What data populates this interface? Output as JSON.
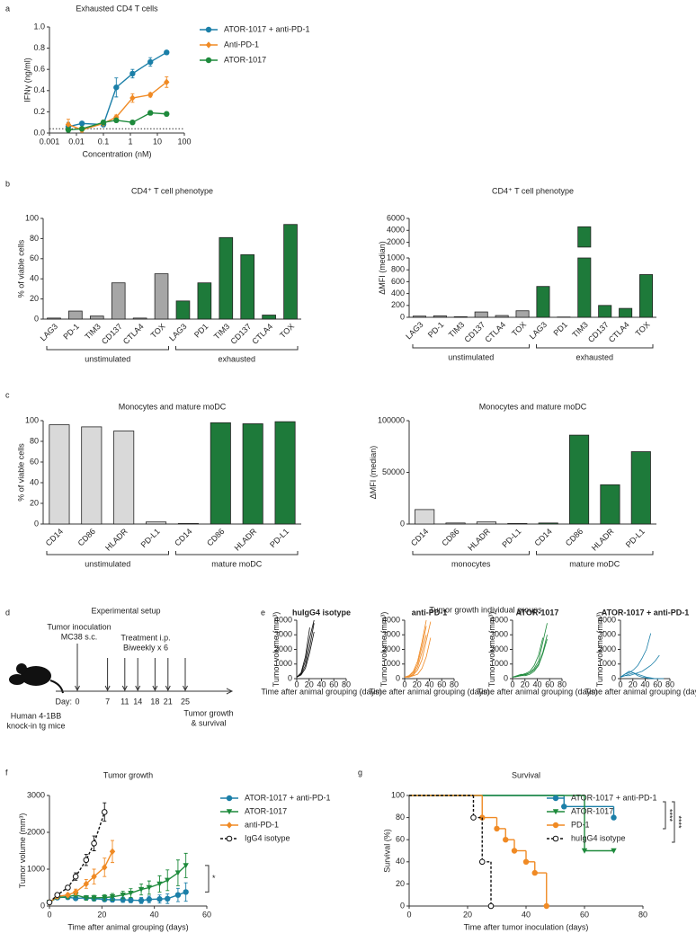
{
  "panels": [
    "a",
    "b",
    "c",
    "d",
    "e",
    "f",
    "g"
  ],
  "setup": {
    "title": "Experimental setup",
    "inoculation": [
      "Tumor inoculation",
      "MC38 s.c."
    ],
    "treatment": [
      "Treatment i.p.",
      "Biweekly x 6"
    ],
    "day_label": "Day:",
    "days": [
      0,
      7,
      11,
      14,
      18,
      21,
      25
    ],
    "mice": [
      "Human 4-1BB",
      "knock-in tg mice"
    ],
    "endpoint": [
      "Tumor growth",
      "& survival"
    ]
  },
  "growth_title": "Tumor growth individual groups",
  "chart_data": [
    {
      "type": "line",
      "title": "Exhausted  CD4 T cells",
      "xlabel": "Concentration (nM)",
      "ylabel": "IFNγ (ng/ml)",
      "xscale": "log",
      "xlim": [
        0.001,
        100
      ],
      "xticks": [
        0.001,
        0.01,
        0.1,
        1,
        10,
        100
      ],
      "ylim": [
        0,
        1
      ],
      "yticks": [
        {
          "value": 0,
          "label": "0.0"
        },
        0.2,
        0.4,
        0.6,
        0.8,
        {
          "value": 1,
          "label": "1.0"
        }
      ],
      "reference_line": 0.04,
      "legend": "right",
      "markers": true,
      "x": [
        0.005,
        0.016,
        0.1,
        0.3,
        1.2,
        5.5,
        22
      ],
      "series": [
        {
          "name": "ATOR-1017 + anti-PD-1",
          "color": "#1b7fa8",
          "marker": "circle",
          "values": [
            0.06,
            0.09,
            0.08,
            0.43,
            0.56,
            0.67,
            0.76
          ],
          "errors": [
            0.04,
            0.01,
            0.02,
            0.09,
            0.04,
            0.04,
            0.01
          ]
        },
        {
          "name": "Anti-PD-1",
          "color": "#f08a24",
          "marker": "diamond",
          "values": [
            0.08,
            0.03,
            0.09,
            0.15,
            0.33,
            0.36,
            0.48
          ],
          "errors": [
            0.05,
            0.02,
            0.01,
            0.02,
            0.04,
            0.02,
            0.05
          ]
        },
        {
          "name": "ATOR-1017",
          "color": "#1e8a3c",
          "marker": "circle",
          "values": [
            0.03,
            0.04,
            0.1,
            0.12,
            0.1,
            0.19,
            0.18
          ],
          "errors": [
            0.02,
            0.01,
            0.02,
            0.01,
            0.01,
            0.02,
            0.02
          ]
        }
      ]
    },
    {
      "type": "bar",
      "title": "CD4⁺ T cell phenotype",
      "ylabel": "% of viable cells",
      "ylim": [
        0,
        100
      ],
      "yticks": [
        0,
        20,
        40,
        60,
        80,
        100
      ],
      "categories": [
        "LAG3",
        "PD-1",
        "TIM3",
        "CD137",
        "CTLA4",
        "TOX",
        "LAG3",
        "PD1",
        "TIM3",
        "CD137",
        "CTLA4",
        "TOX"
      ],
      "values": [
        1,
        8,
        3,
        36,
        1,
        45,
        18,
        36,
        81,
        64,
        4,
        94
      ],
      "colors": [
        "#a6a6a6",
        "#a6a6a6",
        "#a6a6a6",
        "#a6a6a6",
        "#a6a6a6",
        "#a6a6a6",
        "#1e7a3a",
        "#1e7a3a",
        "#1e7a3a",
        "#1e7a3a",
        "#1e7a3a",
        "#1e7a3a"
      ],
      "groups": [
        "unstimulated",
        "exhausted"
      ]
    },
    {
      "type": "bar",
      "title": "CD4⁺ T cell phenotype",
      "ylabel": "ΔMFI (median)",
      "ylim": [
        0,
        6000
      ],
      "ybreak": [
        1000,
        1200
      ],
      "yticks": [
        0,
        200,
        400,
        600,
        800,
        1000,
        2000,
        4000,
        6000
      ],
      "categories": [
        "LAG3",
        "PD-1",
        "TIM3",
        "CD137",
        "CTLA4",
        "TOX",
        "LAG3",
        "PD1",
        "TIM3",
        "CD137",
        "CTLA4",
        "TOX"
      ],
      "values": [
        20,
        25,
        10,
        90,
        30,
        110,
        520,
        5,
        4600,
        200,
        150,
        720
      ],
      "colors": [
        "#a6a6a6",
        "#a6a6a6",
        "#a6a6a6",
        "#a6a6a6",
        "#a6a6a6",
        "#a6a6a6",
        "#1e7a3a",
        "#1e7a3a",
        "#1e7a3a",
        "#1e7a3a",
        "#1e7a3a",
        "#1e7a3a"
      ],
      "groups": [
        "unstimulated",
        "exhausted"
      ]
    },
    {
      "type": "bar",
      "title": "Monocytes and mature moDC",
      "ylabel": "% of viable cells",
      "ylim": [
        0,
        100
      ],
      "yticks": [
        0,
        20,
        40,
        60,
        80,
        100
      ],
      "categories": [
        "CD14",
        "CD86",
        "HLADR",
        "PD-L1",
        "CD14",
        "CD86",
        "HLADR",
        "PD-L1"
      ],
      "values": [
        96,
        94,
        90,
        2,
        0.5,
        98,
        97,
        99
      ],
      "colors": [
        "#d9d9d9",
        "#d9d9d9",
        "#d9d9d9",
        "#d9d9d9",
        "#1e7a3a",
        "#1e7a3a",
        "#1e7a3a",
        "#1e7a3a"
      ],
      "groups": [
        "unstimulated",
        "mature moDC"
      ]
    },
    {
      "type": "bar",
      "title": "Monocytes and mature moDC",
      "ylabel": "ΔMFI (median)",
      "ylim": [
        0,
        100000
      ],
      "yticks": [
        0,
        50000,
        100000
      ],
      "categories": [
        "CD14",
        "CD86",
        "HLADR",
        "PD-L1",
        "CD14",
        "CD86",
        "HLADR",
        "PD-L1"
      ],
      "values": [
        14000,
        1000,
        2000,
        500,
        1000,
        86000,
        38000,
        70000
      ],
      "colors": [
        "#d9d9d9",
        "#d9d9d9",
        "#d9d9d9",
        "#d9d9d9",
        "#1e7a3a",
        "#1e7a3a",
        "#1e7a3a",
        "#1e7a3a"
      ],
      "groups": [
        "monocytes",
        "mature moDC"
      ]
    },
    {
      "type": "line",
      "title": "huIgG4 isotype",
      "xlabel": "Time after animal grouping (days)",
      "ylabel": "Tumor volume (mm³)",
      "markers": false,
      "xlim": [
        0,
        80
      ],
      "xticks": [
        0,
        20,
        40,
        60,
        80
      ],
      "ylim": [
        0,
        4000
      ],
      "yticks": [
        0,
        1000,
        2000,
        3000,
        4000
      ],
      "x": [
        0,
        7,
        14,
        21,
        28,
        35,
        42,
        49,
        56,
        63,
        70
      ],
      "series": [
        {
          "color": "#111111",
          "values": [
            100,
            300,
            900,
            2200,
            3800,
            null,
            null,
            null,
            null,
            null,
            null
          ]
        },
        {
          "color": "#111111",
          "values": [
            100,
            400,
            1500,
            3500,
            null,
            null,
            null,
            null,
            null,
            null,
            null
          ]
        },
        {
          "color": "#111111",
          "values": [
            100,
            250,
            700,
            1800,
            3200,
            null,
            null,
            null,
            null,
            null,
            null
          ]
        },
        {
          "color": "#111111",
          "values": [
            100,
            350,
            1200,
            2800,
            4000,
            null,
            null,
            null,
            null,
            null,
            null
          ]
        }
      ]
    },
    {
      "type": "line",
      "title": "anti-PD-1",
      "xlabel": "Time after animal grouping (days)",
      "ylabel": "Tumor volume (mm³)",
      "markers": false,
      "xlim": [
        0,
        80
      ],
      "xticks": [
        0,
        20,
        40,
        60,
        80
      ],
      "ylim": [
        0,
        4000
      ],
      "yticks": [
        0,
        1000,
        2000,
        3000,
        4000
      ],
      "x": [
        0,
        7,
        14,
        21,
        28,
        35,
        42,
        49,
        56,
        63,
        70
      ],
      "series": [
        {
          "color": "#f08a24",
          "values": [
            100,
            200,
            500,
            1200,
            2500,
            4000,
            null,
            null,
            null,
            null,
            null
          ]
        },
        {
          "color": "#f08a24",
          "values": [
            100,
            150,
            300,
            800,
            1800,
            3000,
            null,
            null,
            null,
            null,
            null
          ]
        },
        {
          "color": "#f08a24",
          "values": [
            100,
            200,
            400,
            1000,
            2200,
            3600,
            null,
            null,
            null,
            null,
            null
          ]
        },
        {
          "color": "#f08a24",
          "values": [
            100,
            150,
            250,
            600,
            1300,
            2600,
            3900,
            null,
            null,
            null,
            null
          ]
        },
        {
          "color": "#f08a24",
          "values": [
            100,
            100,
            200,
            300,
            700,
            1500,
            2800,
            null,
            null,
            null,
            null
          ]
        }
      ]
    },
    {
      "type": "line",
      "title": "ATOR-1017",
      "xlabel": "Time after animal grouping (days)",
      "ylabel": "Tumor volume (mm³)",
      "markers": false,
      "xlim": [
        0,
        80
      ],
      "xticks": [
        0,
        20,
        40,
        60,
        80
      ],
      "ylim": [
        0,
        4000
      ],
      "yticks": [
        0,
        1000,
        2000,
        3000,
        4000
      ],
      "x": [
        0,
        7,
        14,
        21,
        28,
        35,
        42,
        49,
        56,
        63,
        70
      ],
      "series": [
        {
          "color": "#1e8a3c",
          "values": [
            100,
            150,
            200,
            300,
            400,
            700,
            1200,
            2500,
            3800,
            null,
            null
          ]
        },
        {
          "color": "#1e8a3c",
          "values": [
            100,
            200,
            300,
            250,
            400,
            600,
            1000,
            1800,
            3000,
            null,
            null
          ]
        },
        {
          "color": "#1e8a3c",
          "values": [
            100,
            150,
            250,
            350,
            500,
            900,
            1600,
            2800,
            null,
            null,
            null
          ]
        },
        {
          "color": "#1e8a3c",
          "values": [
            100,
            150,
            200,
            200,
            300,
            500,
            900,
            1700,
            2700,
            null,
            null
          ]
        }
      ]
    },
    {
      "type": "line",
      "title": "ATOR-1017 + anti-PD-1",
      "xlabel": "Time after animal grouping (days)",
      "ylabel": "Tumor volume (mm³)",
      "markers": false,
      "xlim": [
        0,
        80
      ],
      "xticks": [
        0,
        20,
        40,
        60,
        80
      ],
      "ylim": [
        0,
        4000
      ],
      "yticks": [
        0,
        1000,
        2000,
        3000,
        4000
      ],
      "x": [
        0,
        7,
        14,
        21,
        28,
        35,
        42,
        49,
        56,
        63,
        70
      ],
      "series": [
        {
          "color": "#1b7fa8",
          "values": [
            100,
            200,
            300,
            400,
            300,
            200,
            100,
            50,
            0,
            0,
            0
          ]
        },
        {
          "color": "#1b7fa8",
          "values": [
            100,
            300,
            400,
            600,
            900,
            1400,
            2000,
            3100,
            null,
            null,
            null
          ]
        },
        {
          "color": "#1b7fa8",
          "values": [
            100,
            200,
            200,
            300,
            400,
            500,
            700,
            900,
            1200,
            1600,
            null
          ]
        },
        {
          "color": "#1b7fa8",
          "values": [
            100,
            300,
            500,
            400,
            200,
            100,
            50,
            0,
            0,
            0,
            0
          ]
        }
      ]
    },
    {
      "type": "line",
      "title": "Tumor growth",
      "xlabel": "Time after animal grouping (days)",
      "ylabel": "Tumor volume (mm³)",
      "markers": true,
      "legend": "right",
      "xlim": [
        0,
        60
      ],
      "xticks": [
        0,
        20,
        40,
        60
      ],
      "ylim": [
        0,
        3000
      ],
      "yticks": [
        0,
        1000,
        2000,
        3000
      ],
      "annotations": [
        "*"
      ],
      "series": [
        {
          "name": "ATOR-1017 + anti-PD-1",
          "color": "#1b7fa8",
          "marker": "circle",
          "x": [
            0,
            3,
            7,
            10,
            14,
            17,
            21,
            24,
            28,
            31,
            35,
            38,
            42,
            45,
            49,
            52
          ],
          "values": [
            100,
            230,
            240,
            210,
            220,
            200,
            180,
            170,
            170,
            160,
            150,
            180,
            190,
            200,
            300,
            380
          ],
          "errors": [
            20,
            40,
            60,
            50,
            60,
            60,
            60,
            60,
            70,
            70,
            80,
            90,
            110,
            130,
            180,
            250
          ]
        },
        {
          "name": "ATOR-1017",
          "color": "#1e8a3c",
          "marker": "triangle",
          "x": [
            0,
            3,
            7,
            10,
            14,
            17,
            21,
            24,
            28,
            31,
            35,
            38,
            42,
            45,
            49,
            52
          ],
          "values": [
            100,
            240,
            250,
            300,
            220,
            220,
            230,
            250,
            300,
            350,
            450,
            500,
            600,
            700,
            900,
            1100
          ],
          "errors": [
            20,
            40,
            50,
            60,
            60,
            70,
            80,
            90,
            100,
            120,
            150,
            180,
            220,
            280,
            350,
            330
          ]
        },
        {
          "name": "anti-PD-1",
          "color": "#f08a24",
          "marker": "diamond",
          "x": [
            0,
            3,
            7,
            10,
            14,
            17,
            21,
            24
          ],
          "values": [
            100,
            260,
            300,
            380,
            600,
            800,
            1050,
            1480
          ],
          "errors": [
            20,
            40,
            50,
            80,
            120,
            200,
            250,
            300
          ]
        },
        {
          "name": "IgG4 isotype",
          "color": "#111111",
          "marker": "open-circle",
          "dash": true,
          "x": [
            0,
            3,
            7,
            10,
            14,
            17,
            21
          ],
          "values": [
            100,
            300,
            500,
            800,
            1250,
            1700,
            2550
          ],
          "errors": [
            20,
            40,
            60,
            100,
            150,
            200,
            250
          ]
        }
      ]
    },
    {
      "type": "step",
      "title": "Survival",
      "xlabel": "Time after tumor inoculation (days)",
      "ylabel": "Survival (%)",
      "markers": true,
      "legend": "right",
      "xlim": [
        0,
        80
      ],
      "xticks": [
        0,
        20,
        40,
        60,
        80
      ],
      "ylim": [
        0,
        100
      ],
      "yticks": [
        0,
        20,
        40,
        60,
        80,
        100
      ],
      "annotations": [
        "****",
        "****"
      ],
      "series": [
        {
          "name": "ATOR-1017 + anti-PD-1",
          "color": "#1b7fa8",
          "marker": "circle",
          "x": [
            0,
            53,
            70
          ],
          "values": [
            100,
            90,
            80
          ]
        },
        {
          "name": "ATOR-1017",
          "color": "#1e8a3c",
          "marker": "triangle",
          "x": [
            0,
            60,
            70
          ],
          "values": [
            100,
            50,
            50
          ]
        },
        {
          "name": "PD-1",
          "color": "#f08a24",
          "marker": "circle",
          "x": [
            0,
            25,
            30,
            33,
            36,
            40,
            43,
            47
          ],
          "values": [
            100,
            80,
            70,
            60,
            50,
            40,
            30,
            0
          ]
        },
        {
          "name": "huIgG4 isotype",
          "color": "#111111",
          "marker": "open-circle",
          "dash": true,
          "x": [
            0,
            22,
            25,
            28
          ],
          "values": [
            100,
            80,
            40,
            0
          ]
        }
      ]
    }
  ]
}
